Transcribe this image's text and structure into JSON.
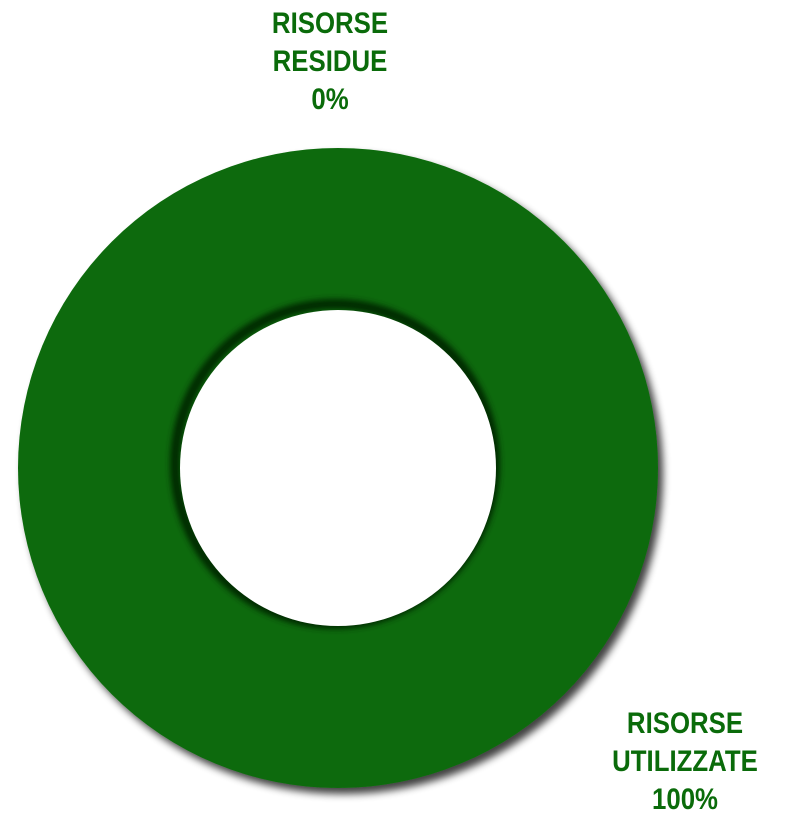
{
  "chart_data": {
    "type": "pie",
    "variant": "donut",
    "title": "",
    "slices": [
      {
        "label_lines": [
          "RISORSE",
          "RESIDUE"
        ],
        "percent_label": "0%",
        "value": 0,
        "color": "#0a6b0a"
      },
      {
        "label_lines": [
          "RISORSE",
          "UTILIZZATE"
        ],
        "percent_label": "100%",
        "value": 100,
        "color": "#0a6b0a"
      }
    ],
    "label_color": "#0a6b0a",
    "legend": "none"
  }
}
